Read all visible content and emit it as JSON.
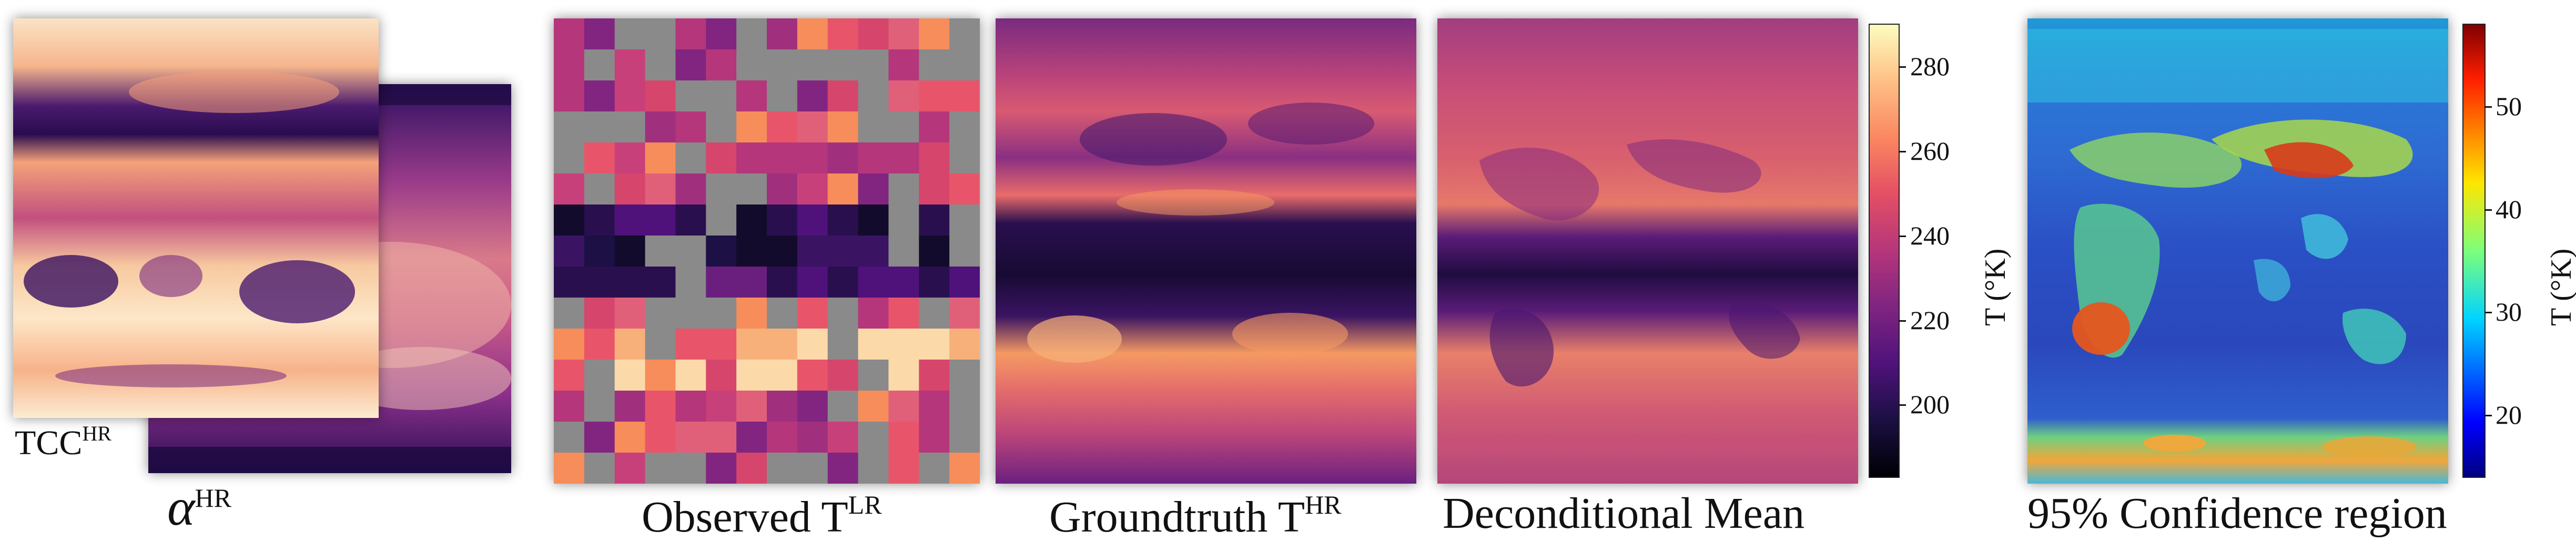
{
  "panels": {
    "tcc": {
      "label": "TCC",
      "sup": "HR"
    },
    "alpha": {
      "label": "α",
      "sup": "HR"
    },
    "observed": {
      "label": "Observed T",
      "sup": "LR"
    },
    "groundtruth": {
      "label": "Groundtruth T",
      "sup": "HR"
    },
    "mean": {
      "label": "Deconditional Mean"
    },
    "confidence": {
      "label": "95% Confidence region"
    }
  },
  "colorbar_temperature": {
    "label": "T (°K)",
    "ticks": [
      "280",
      "260",
      "240",
      "220",
      "200"
    ],
    "colormap": "magma",
    "range": [
      183,
      290
    ]
  },
  "colorbar_confidence": {
    "label": "T (°K)",
    "ticks": [
      "50",
      "40",
      "30",
      "20"
    ],
    "colormap": "jet",
    "range": [
      14,
      58
    ]
  },
  "colors": {
    "magma_dark": "#120b2b",
    "magma_purple": "#6a1f7e",
    "magma_pink": "#d6456c",
    "magma_orange": "#f78d5a",
    "magma_light": "#fcf1c0",
    "grid_gray": "#8a8a8a",
    "jet_blue": "#2a4fc4",
    "jet_red": "#b01010"
  }
}
